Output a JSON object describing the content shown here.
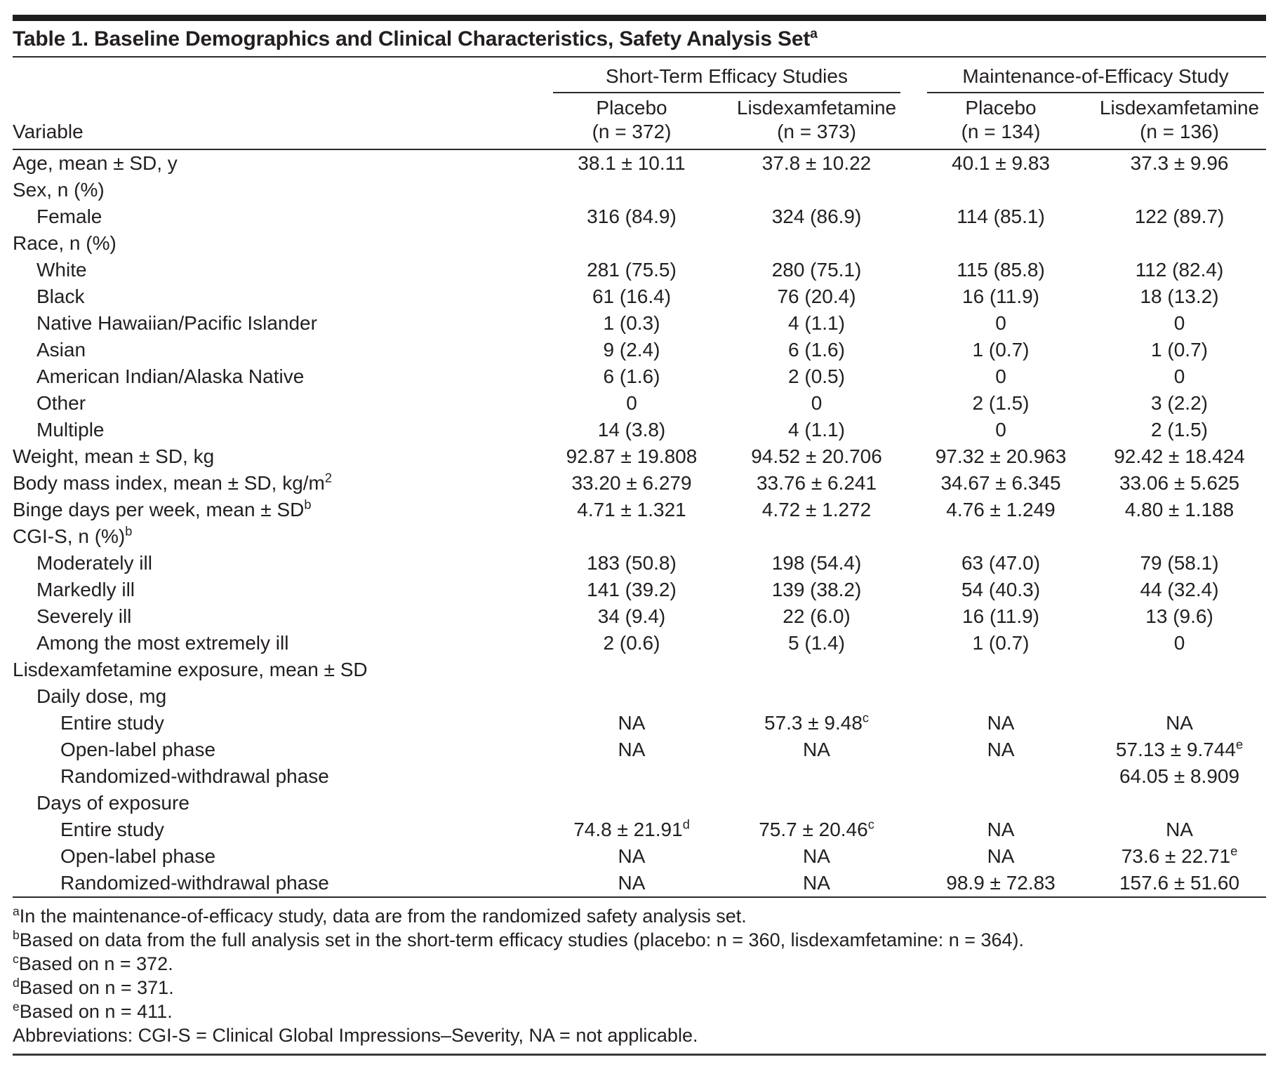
{
  "title": {
    "text": "Table 1. Baseline Demographics and Clinical Characteristics, Safety Analysis Set",
    "sup": "a"
  },
  "colors": {
    "background": "#ffffff",
    "text": "#231f20",
    "top_bar": "#1f1f1f",
    "rule": "#2b2b2b"
  },
  "header": {
    "variable_label": "Variable",
    "groups": [
      {
        "label": "Short-Term Efficacy Studies"
      },
      {
        "label": "Maintenance-of-Efficacy Study"
      }
    ],
    "columns": [
      {
        "drug": "Placebo",
        "n": "(n = 372)"
      },
      {
        "drug": "Lisdexamfetamine",
        "n": "(n = 373)"
      },
      {
        "drug": "Placebo",
        "n": "(n = 134)"
      },
      {
        "drug": "Lisdexamfetamine",
        "n": "(n = 136)"
      }
    ]
  },
  "table": {
    "rows": [
      {
        "label": "Age, mean ± SD, y",
        "indent": 0,
        "cells": [
          "38.1 ± 10.11",
          "37.8 ± 10.22",
          "40.1 ± 9.83",
          "37.3 ± 9.96"
        ]
      },
      {
        "label": "Sex, n (%)",
        "indent": 0,
        "cells": [
          "",
          "",
          "",
          ""
        ]
      },
      {
        "label": "Female",
        "indent": 1,
        "cells": [
          "316 (84.9)",
          "324 (86.9)",
          "114 (85.1)",
          "122 (89.7)"
        ]
      },
      {
        "label": "Race, n (%)",
        "indent": 0,
        "cells": [
          "",
          "",
          "",
          ""
        ]
      },
      {
        "label": "White",
        "indent": 1,
        "cells": [
          "281 (75.5)",
          "280 (75.1)",
          "115 (85.8)",
          "112 (82.4)"
        ]
      },
      {
        "label": "Black",
        "indent": 1,
        "cells": [
          "61 (16.4)",
          "76 (20.4)",
          "16 (11.9)",
          "18 (13.2)"
        ]
      },
      {
        "label": "Native Hawaiian/Pacific Islander",
        "indent": 1,
        "cells": [
          "1 (0.3)",
          "4 (1.1)",
          "0",
          "0"
        ]
      },
      {
        "label": "Asian",
        "indent": 1,
        "cells": [
          "9 (2.4)",
          "6 (1.6)",
          "1 (0.7)",
          "1 (0.7)"
        ]
      },
      {
        "label": "American Indian/Alaska Native",
        "indent": 1,
        "cells": [
          "6 (1.6)",
          "2 (0.5)",
          "0",
          "0"
        ]
      },
      {
        "label": "Other",
        "indent": 1,
        "cells": [
          "0",
          "0",
          "2 (1.5)",
          "3 (2.2)"
        ]
      },
      {
        "label": "Multiple",
        "indent": 1,
        "cells": [
          "14 (3.8)",
          "4 (1.1)",
          "0",
          "2 (1.5)"
        ]
      },
      {
        "label": "Weight, mean ± SD, kg",
        "indent": 0,
        "cells": [
          "92.87 ± 19.808",
          "94.52 ± 20.706",
          "97.32 ± 20.963",
          "92.42 ± 18.424"
        ]
      },
      {
        "label": "Body mass index, mean ± SD, kg/m",
        "sup": "2",
        "indent": 0,
        "cells": [
          "33.20 ± 6.279",
          "33.76 ± 6.241",
          "34.67 ± 6.345",
          "33.06 ± 5.625"
        ]
      },
      {
        "label": "Binge days per week, mean ± SD",
        "sup": "b",
        "indent": 0,
        "cells": [
          "4.71 ± 1.321",
          "4.72 ± 1.272",
          "4.76 ± 1.249",
          "4.80 ± 1.188"
        ]
      },
      {
        "label": "CGI-S, n (%)",
        "sup": "b",
        "indent": 0,
        "cells": [
          "",
          "",
          "",
          ""
        ]
      },
      {
        "label": "Moderately ill",
        "indent": 1,
        "cells": [
          "183 (50.8)",
          "198 (54.4)",
          "63 (47.0)",
          "79 (58.1)"
        ]
      },
      {
        "label": "Markedly ill",
        "indent": 1,
        "cells": [
          "141 (39.2)",
          "139 (38.2)",
          "54 (40.3)",
          "44 (32.4)"
        ]
      },
      {
        "label": "Severely ill",
        "indent": 1,
        "cells": [
          "34 (9.4)",
          "22 (6.0)",
          "16 (11.9)",
          "13 (9.6)"
        ]
      },
      {
        "label": "Among the most extremely ill",
        "indent": 1,
        "cells": [
          "2 (0.6)",
          "5 (1.4)",
          "1 (0.7)",
          "0"
        ]
      },
      {
        "label": "Lisdexamfetamine exposure, mean ± SD",
        "indent": 0,
        "cells": [
          "",
          "",
          "",
          ""
        ]
      },
      {
        "label": "Daily dose, mg",
        "indent": 1,
        "cells": [
          "",
          "",
          "",
          ""
        ]
      },
      {
        "label": "Entire study",
        "indent": 2,
        "cells": [
          "NA",
          {
            "t": "57.3 ± 9.48",
            "sup": "c"
          },
          "NA",
          "NA"
        ]
      },
      {
        "label": "Open-label phase",
        "indent": 2,
        "cells": [
          "NA",
          "NA",
          "NA",
          {
            "t": "57.13 ± 9.744",
            "sup": "e"
          }
        ]
      },
      {
        "label": "Randomized-withdrawal phase",
        "indent": 2,
        "cells": [
          "",
          "",
          "",
          "64.05 ± 8.909"
        ]
      },
      {
        "label": "Days of exposure",
        "indent": 1,
        "cells": [
          "",
          "",
          "",
          ""
        ]
      },
      {
        "label": "Entire study",
        "indent": 2,
        "cells": [
          {
            "t": "74.8 ± 21.91",
            "sup": "d"
          },
          {
            "t": "75.7 ± 20.46",
            "sup": "c"
          },
          "NA",
          "NA"
        ]
      },
      {
        "label": "Open-label phase",
        "indent": 2,
        "cells": [
          "NA",
          "NA",
          "NA",
          {
            "t": "73.6 ± 22.71",
            "sup": "e"
          }
        ]
      },
      {
        "label": "Randomized-withdrawal phase",
        "indent": 2,
        "cells": [
          "NA",
          "NA",
          "98.9 ± 72.83",
          "157.6 ± 51.60"
        ]
      }
    ]
  },
  "footnotes": [
    {
      "sup": "a",
      "text": "In the maintenance-of-efficacy study, data are from the randomized safety analysis set."
    },
    {
      "sup": "b",
      "text": "Based on data from the full analysis set in the short-term efficacy studies (placebo: n = 360, lisdexamfetamine: n = 364)."
    },
    {
      "sup": "c",
      "text": "Based on n = 372."
    },
    {
      "sup": "d",
      "text": "Based on n = 371."
    },
    {
      "sup": "e",
      "text": "Based on n = 411."
    },
    {
      "text": "Abbreviations: CGI-S = Clinical Global Impressions–Severity, NA = not applicable."
    }
  ]
}
